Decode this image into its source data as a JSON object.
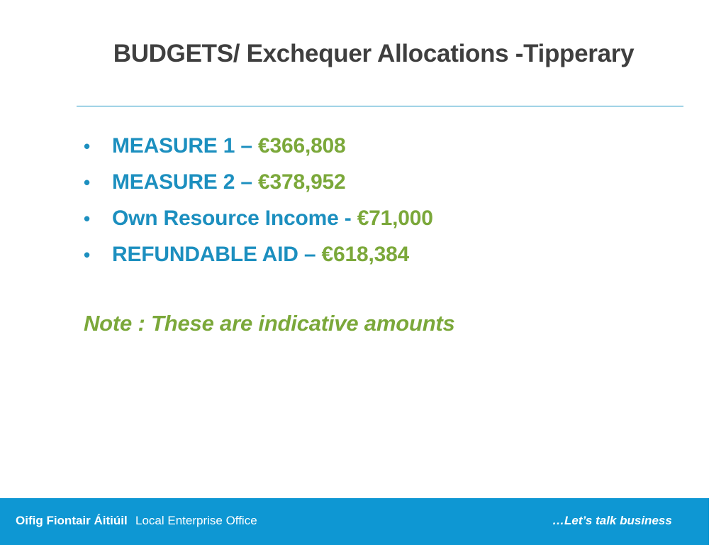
{
  "slide": {
    "title": "BUDGETS/ Exchequer Allocations -Tipperary",
    "bullet_symbol": "•",
    "bullets": [
      {
        "label": "MEASURE 1 – ",
        "amount": "€366,808"
      },
      {
        "label": "MEASURE 2 – ",
        "amount": "€378,952"
      },
      {
        "label": "Own Resource Income - ",
        "amount": "€71,000"
      },
      {
        "label": "REFUNDABLE AID – ",
        "amount": "€618,384"
      }
    ],
    "note": "Note : These are indicative amounts"
  },
  "footer": {
    "irish_name": "Oifig Fiontair Áitiúil",
    "english_name": "Local Enterprise Office",
    "tagline": "…Let’s talk business"
  },
  "colors": {
    "title": "#3f3f3f",
    "accent_blue": "#1c8fbf",
    "accent_green": "#7ba83a",
    "footer_bg": "#0e97d3"
  }
}
